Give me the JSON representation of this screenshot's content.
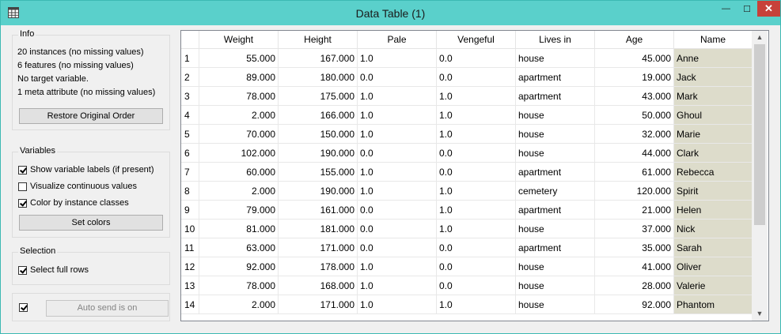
{
  "window": {
    "title": "Data Table (1)",
    "icon": "grid-icon",
    "minimize": "—",
    "maximize": "☐",
    "close": "✕"
  },
  "info": {
    "title": "Info",
    "lines": [
      "20 instances (no missing values)",
      "6 features (no missing values)",
      "No target variable.",
      "1 meta attribute (no missing values)"
    ],
    "restore_button": "Restore Original Order"
  },
  "variables": {
    "title": "Variables",
    "show_labels": {
      "label": "Show variable labels (if present)",
      "checked": true
    },
    "visualize_continuous": {
      "label": "Visualize continuous values",
      "checked": false
    },
    "color_by_class": {
      "label": "Color by instance classes",
      "checked": true
    },
    "set_colors_button": "Set colors"
  },
  "selection": {
    "title": "Selection",
    "select_full_rows": {
      "label": "Select full rows",
      "checked": true
    }
  },
  "auto_send": {
    "checked": true,
    "button": "Auto send is on"
  },
  "table": {
    "columns": [
      "",
      "Weight",
      "Height",
      "Pale",
      "Vengeful",
      "Lives in",
      "Age",
      "Name"
    ],
    "rows": [
      [
        "1",
        "55.000",
        "167.000",
        "1.0",
        "0.0",
        "house",
        "45.000",
        "Anne"
      ],
      [
        "2",
        "89.000",
        "180.000",
        "0.0",
        "0.0",
        "apartment",
        "19.000",
        "Jack"
      ],
      [
        "3",
        "78.000",
        "175.000",
        "1.0",
        "1.0",
        "apartment",
        "43.000",
        "Mark"
      ],
      [
        "4",
        "2.000",
        "166.000",
        "1.0",
        "1.0",
        "house",
        "50.000",
        "Ghoul"
      ],
      [
        "5",
        "70.000",
        "150.000",
        "1.0",
        "1.0",
        "house",
        "32.000",
        "Marie"
      ],
      [
        "6",
        "102.000",
        "190.000",
        "0.0",
        "0.0",
        "house",
        "44.000",
        "Clark"
      ],
      [
        "7",
        "60.000",
        "155.000",
        "1.0",
        "0.0",
        "apartment",
        "61.000",
        "Rebecca"
      ],
      [
        "8",
        "2.000",
        "190.000",
        "1.0",
        "1.0",
        "cemetery",
        "120.000",
        "Spirit"
      ],
      [
        "9",
        "79.000",
        "161.000",
        "0.0",
        "1.0",
        "apartment",
        "21.000",
        "Helen"
      ],
      [
        "10",
        "81.000",
        "181.000",
        "0.0",
        "1.0",
        "house",
        "37.000",
        "Nick"
      ],
      [
        "11",
        "63.000",
        "171.000",
        "0.0",
        "0.0",
        "apartment",
        "35.000",
        "Sarah"
      ],
      [
        "12",
        "92.000",
        "178.000",
        "1.0",
        "0.0",
        "house",
        "41.000",
        "Oliver"
      ],
      [
        "13",
        "78.000",
        "168.000",
        "1.0",
        "0.0",
        "house",
        "28.000",
        "Valerie"
      ],
      [
        "14",
        "2.000",
        "171.000",
        "1.0",
        "1.0",
        "house",
        "92.000",
        "Phantom"
      ]
    ],
    "meta_color": "#dddccb",
    "scroll_up": "▲",
    "scroll_down": "▼"
  }
}
